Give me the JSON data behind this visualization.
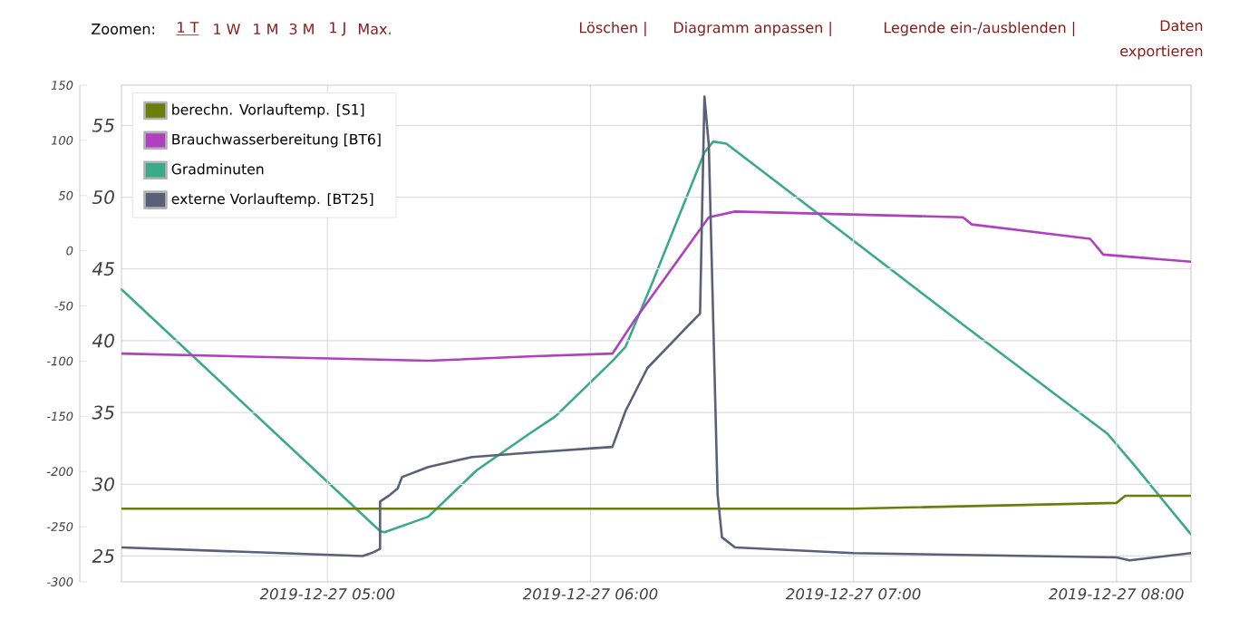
{
  "chart_data": {
    "type": "line",
    "xlim": [
      "2019-12-27T04:13",
      "2019-12-27T08:17"
    ],
    "ylim": [
      23.2,
      57.8
    ],
    "y2lim": [
      -300,
      150
    ],
    "xticks": [
      {
        "value": "2019-12-27T05:00",
        "label": "2019-12-27 05:00"
      },
      {
        "value": "2019-12-27T06:00",
        "label": "2019-12-27 06:00"
      },
      {
        "value": "2019-12-27T07:00",
        "label": "2019-12-27 07:00"
      },
      {
        "value": "2019-12-27T08:00",
        "label": "2019-12-27 08:00"
      }
    ],
    "yticks": [
      25,
      30,
      35,
      40,
      45,
      50,
      55
    ],
    "y2ticks": [
      -300,
      -250,
      -200,
      -150,
      -100,
      -50,
      0,
      50,
      100,
      150
    ],
    "grid": true,
    "legend": "top left",
    "annotations": [
      "Zoomen:",
      "1 T",
      "1 W",
      "1 M",
      "3 M",
      "1 J",
      "Max.",
      "Löschen |",
      "Diagramm anpassen |",
      "Legende ein-/ausblenden |",
      "Daten exportieren"
    ],
    "series": [
      {
        "name": "berechn. Vorlauftemp. [S1]",
        "color": "#6b7d0a",
        "x": [
          "2019-12-27T04:13",
          "2019-12-27T07:00",
          "2019-12-27T08:00",
          "2019-12-27T08:02",
          "2019-12-27T08:17"
        ],
        "values": [
          28.3,
          28.3,
          28.7,
          29.2,
          29.2
        ]
      },
      {
        "name": "Brauchwasserbereitung [BT6]",
        "color": "#b040c0",
        "x": [
          "2019-12-27T04:13",
          "2019-12-27T05:23",
          "2019-12-27T05:46",
          "2019-12-27T06:05",
          "2019-12-27T06:10",
          "2019-12-27T06:27",
          "2019-12-27T06:33",
          "2019-12-27T07:25",
          "2019-12-27T07:27",
          "2019-12-27T07:54",
          "2019-12-27T07:57",
          "2019-12-27T08:17"
        ],
        "values": [
          39.1,
          38.6,
          38.9,
          39.1,
          41.4,
          48.6,
          49.0,
          48.6,
          48.1,
          47.1,
          46.0,
          45.5
        ]
      },
      {
        "name": "Gradminuten",
        "color": "#3aaa88",
        "axis": "y2",
        "x": [
          "2019-12-27T04:13",
          "2019-12-27T05:12",
          "2019-12-27T05:13",
          "2019-12-27T05:23",
          "2019-12-27T05:34",
          "2019-12-27T05:46",
          "2019-12-27T05:52",
          "2019-12-27T06:05",
          "2019-12-27T06:08",
          "2019-12-27T06:14",
          "2019-12-27T06:26",
          "2019-12-27T06:28",
          "2019-12-27T06:31",
          "2019-12-27T07:02",
          "2019-12-27T07:25",
          "2019-12-27T07:58",
          "2019-12-27T08:04",
          "2019-12-27T08:17"
        ],
        "values": [
          -35,
          -254,
          -255,
          -241,
          -199,
          -166,
          -150,
          -100,
          -87,
          -30,
          89,
          99,
          97,
          3,
          -67,
          -166,
          -194,
          -257
        ]
      },
      {
        "name": "externe Vorlauftemp. [BT25]",
        "color": "#5a6078",
        "x": [
          "2019-12-27T04:13",
          "2019-12-27T05:08",
          "2019-12-27T05:10",
          "2019-12-27T05:12",
          "2019-12-27T05:12",
          "2019-12-27T05:14",
          "2019-12-27T05:16",
          "2019-12-27T05:17",
          "2019-12-27T05:23",
          "2019-12-27T05:33",
          "2019-12-27T05:46",
          "2019-12-27T06:05",
          "2019-12-27T06:08",
          "2019-12-27T06:13",
          "2019-12-27T06:25",
          "2019-12-27T06:26",
          "2019-12-27T06:27",
          "2019-12-27T06:29",
          "2019-12-27T06:30",
          "2019-12-27T06:33",
          "2019-12-27T07:00",
          "2019-12-27T08:00",
          "2019-12-27T08:03",
          "2019-12-27T08:17"
        ],
        "values": [
          25.6,
          25.0,
          25.2,
          25.5,
          28.8,
          29.2,
          29.7,
          30.5,
          31.2,
          31.9,
          32.2,
          32.6,
          35.1,
          38.1,
          41.9,
          57.0,
          53.6,
          29.3,
          26.3,
          25.6,
          25.2,
          24.9,
          24.7,
          25.2
        ]
      }
    ]
  }
}
